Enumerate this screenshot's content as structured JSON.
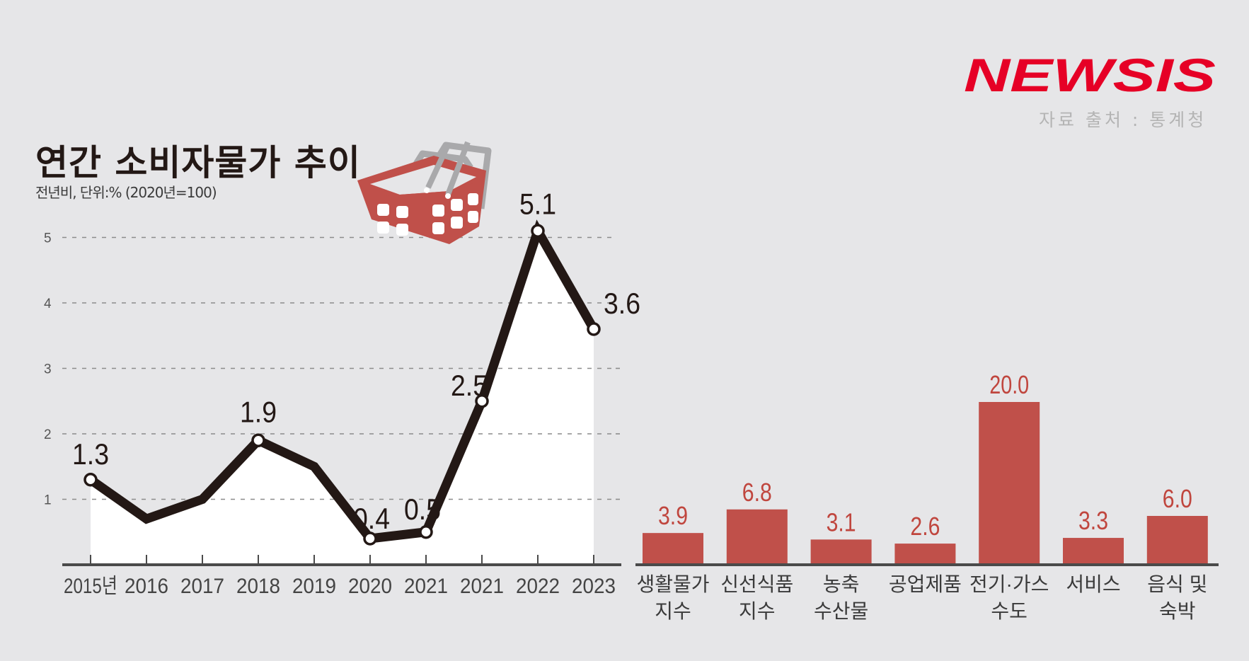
{
  "header": {
    "title": "연간 소비자물가 추이",
    "subtitle": "전년비, 단위:% (2020년=100)",
    "logo": "NEWSIS",
    "source": "자료 출처 : 통계청"
  },
  "colors": {
    "background": "#e6e6e8",
    "line": "#231815",
    "bar": "#c0504a",
    "bar_label": "#c0463e",
    "logo": "#e60026",
    "basket": "#c0504a",
    "basket_handle": "#a9a9ab"
  },
  "icons": {
    "basket": "shopping-basket-icon"
  },
  "chart_data": [
    {
      "type": "line",
      "title": "연간 소비자물가 추이",
      "subtitle": "전년비, 단위:% (2020년=100)",
      "xlabel": "",
      "ylabel": "%",
      "categories": [
        "2015년",
        "2016",
        "2017",
        "2018",
        "2019",
        "2020",
        "2021",
        "2021",
        "2022",
        "2023"
      ],
      "values": [
        1.3,
        0.7,
        1.0,
        1.9,
        1.5,
        0.4,
        0.5,
        2.5,
        5.1,
        3.6
      ],
      "data_labels": [
        "1.3",
        "",
        "",
        "1.9",
        "",
        "0.4",
        "0.5",
        "2.5",
        "5.1",
        "3.6"
      ],
      "yticks": [
        1,
        2,
        3,
        4,
        5
      ],
      "ylim": [
        0,
        5.5
      ],
      "grid": true,
      "legend": null
    },
    {
      "type": "bar",
      "title": "",
      "categories": [
        "생활물가 지수",
        "신선식품 지수",
        "농축 수산물",
        "공업제품",
        "전기·가스 수도",
        "서비스",
        "음식 및 숙박"
      ],
      "category_lines": [
        [
          "생활물가",
          "지수"
        ],
        [
          "신선식품",
          "지수"
        ],
        [
          "농축",
          "수산물"
        ],
        [
          "공업제품"
        ],
        [
          "전기·가스",
          "수도"
        ],
        [
          "서비스"
        ],
        [
          "음식 및",
          "숙박"
        ]
      ],
      "values": [
        3.9,
        6.8,
        3.1,
        2.6,
        20.0,
        3.3,
        6.0
      ],
      "data_labels": [
        "3.9",
        "6.8",
        "3.1",
        "2.6",
        "20.0",
        "3.3",
        "6.0"
      ],
      "ylim": [
        0,
        20
      ],
      "grid": false
    }
  ]
}
